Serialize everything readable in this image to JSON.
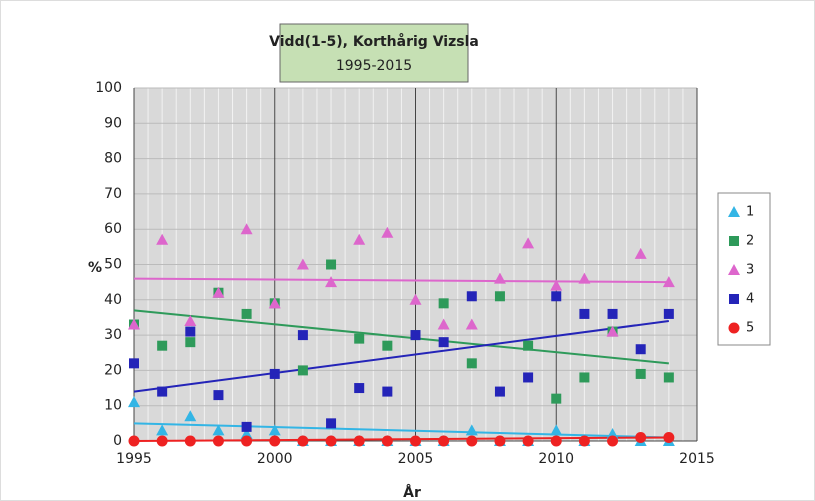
{
  "chart_data": {
    "type": "scatter",
    "title": "Vidd(1-5), Korthårig Vizsla",
    "subtitle": "1995-2015",
    "x_label": "År",
    "y_label": "%",
    "x": [
      1995,
      1996,
      1997,
      1998,
      1999,
      2000,
      2001,
      2002,
      2003,
      2004,
      2005,
      2006,
      2007,
      2008,
      2009,
      2010,
      2011,
      2012,
      2013,
      2014
    ],
    "series": [
      {
        "name": "1",
        "color": "#33b5e5",
        "marker": "triangle",
        "values": [
          11,
          3,
          7,
          3,
          2,
          3,
          0,
          0,
          0,
          0,
          0,
          0,
          3,
          0,
          0,
          3,
          0,
          2,
          0,
          0
        ],
        "trend": [
          5,
          1
        ]
      },
      {
        "name": "2",
        "color": "#2e9a5a",
        "marker": "square",
        "values": [
          33,
          27,
          28,
          42,
          36,
          39,
          20,
          50,
          29,
          27,
          30,
          39,
          22,
          41,
          27,
          12,
          18,
          31,
          19,
          18
        ],
        "trend": [
          37,
          22
        ]
      },
      {
        "name": "3",
        "color": "#dd66cc",
        "marker": "triangle",
        "values": [
          33,
          57,
          34,
          42,
          60,
          39,
          50,
          45,
          57,
          59,
          40,
          33,
          33,
          46,
          56,
          44,
          46,
          31,
          53,
          45
        ],
        "trend": [
          46,
          45
        ]
      },
      {
        "name": "4",
        "color": "#2424b8",
        "marker": "square",
        "values": [
          22,
          14,
          31,
          13,
          4,
          19,
          30,
          5,
          15,
          14,
          30,
          28,
          41,
          14,
          18,
          41,
          36,
          36,
          26,
          36
        ],
        "trend": [
          14,
          34
        ]
      },
      {
        "name": "5",
        "color": "#ee2222",
        "marker": "circle",
        "values": [
          0,
          0,
          0,
          0,
          0,
          0,
          0,
          0,
          0,
          0,
          0,
          0,
          0,
          0,
          0,
          0,
          0,
          0,
          1,
          1
        ],
        "trend": [
          0,
          1
        ]
      }
    ],
    "xlim": [
      1995,
      2015
    ],
    "xticks": [
      1995,
      2000,
      2005,
      2010,
      2015
    ],
    "ylim": [
      0,
      100
    ],
    "yticks": [
      0,
      10,
      20,
      30,
      40,
      50,
      60,
      70,
      80,
      90,
      100
    ],
    "grid": true,
    "legend": "right"
  }
}
